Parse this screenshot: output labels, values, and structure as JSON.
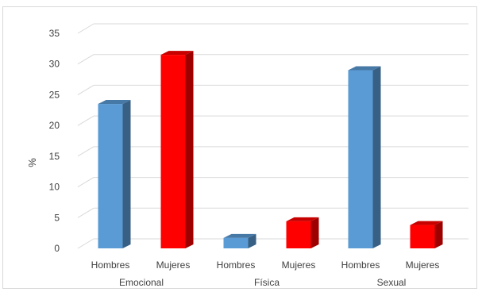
{
  "chart_data": {
    "type": "bar",
    "ylabel": "%",
    "ylim": [
      0,
      35
    ],
    "yticks": [
      0,
      5,
      10,
      15,
      20,
      25,
      30,
      35
    ],
    "grid": true,
    "groups": [
      {
        "label": "Emocional",
        "bars": [
          {
            "label": "Hombres",
            "value": 23.5,
            "color": "#5b9bd5"
          },
          {
            "label": "Mujeres",
            "value": 31.5,
            "color": "#ff0000"
          }
        ]
      },
      {
        "label": "Física",
        "bars": [
          {
            "label": "Hombres",
            "value": 1.7,
            "color": "#5b9bd5"
          },
          {
            "label": "Mujeres",
            "value": 4.4,
            "color": "#ff0000"
          }
        ]
      },
      {
        "label": "Sexual",
        "bars": [
          {
            "label": "Hombres",
            "value": 29.0,
            "color": "#5b9bd5"
          },
          {
            "label": "Mujeres",
            "value": 3.8,
            "color": "#ff0000"
          }
        ]
      }
    ]
  }
}
